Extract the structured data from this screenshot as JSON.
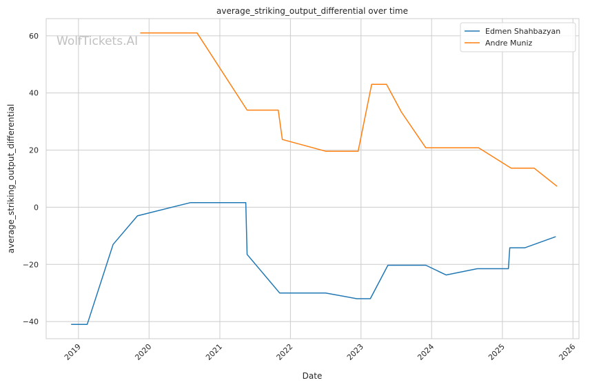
{
  "chart_data": {
    "type": "line",
    "title": "average_striking_output_differential over time",
    "xlabel": "Date",
    "ylabel": "average_striking_output_differential",
    "watermark": "WolfTickets.AI",
    "x_ticks": [
      "2019",
      "2020",
      "2021",
      "2022",
      "2023",
      "2024",
      "2025",
      "2026"
    ],
    "y_ticks": [
      -40,
      -20,
      0,
      20,
      40,
      60
    ],
    "xlim": [
      "2018-07-18",
      "2026-02-01"
    ],
    "ylim": [
      -46,
      66
    ],
    "grid": true,
    "legend_position": "top-right",
    "series": [
      {
        "name": "Edmen Shahbazyan",
        "color": "#1f77b4",
        "points": [
          [
            "2018-11-24",
            -41.0
          ],
          [
            "2019-02-15",
            -41.0
          ],
          [
            "2019-06-29",
            -13.0
          ],
          [
            "2019-11-02",
            -3.0
          ],
          [
            "2019-11-20",
            -2.7
          ],
          [
            "2020-08-01",
            1.6
          ],
          [
            "2021-05-15",
            1.6
          ],
          [
            "2021-05-22",
            -16.5
          ],
          [
            "2021-11-06",
            -30.0
          ],
          [
            "2022-07-02",
            -30.0
          ],
          [
            "2022-12-10",
            -32.0
          ],
          [
            "2023-02-18",
            -32.0
          ],
          [
            "2023-05-20",
            -20.3
          ],
          [
            "2023-12-02",
            -20.3
          ],
          [
            "2024-03-16",
            -23.7
          ],
          [
            "2024-08-24",
            -21.5
          ],
          [
            "2025-02-01",
            -21.5
          ],
          [
            "2025-02-08",
            -14.2
          ],
          [
            "2025-04-26",
            -14.2
          ],
          [
            "2025-10-04",
            -10.3
          ]
        ]
      },
      {
        "name": "Andre Muniz",
        "color": "#ff7f0e",
        "points": [
          [
            "2019-11-16",
            61.0
          ],
          [
            "2020-09-05",
            61.0
          ],
          [
            "2021-05-22",
            34.0
          ],
          [
            "2021-10-30",
            34.0
          ],
          [
            "2021-11-20",
            23.7
          ],
          [
            "2022-07-02",
            19.6
          ],
          [
            "2022-12-17",
            19.6
          ],
          [
            "2023-02-25",
            43.0
          ],
          [
            "2023-05-13",
            43.0
          ],
          [
            "2023-07-29",
            33.3
          ],
          [
            "2023-12-02",
            20.8
          ],
          [
            "2024-08-31",
            20.8
          ],
          [
            "2025-02-15",
            13.7
          ],
          [
            "2025-06-14",
            13.7
          ],
          [
            "2025-10-11",
            7.3
          ]
        ]
      }
    ]
  }
}
